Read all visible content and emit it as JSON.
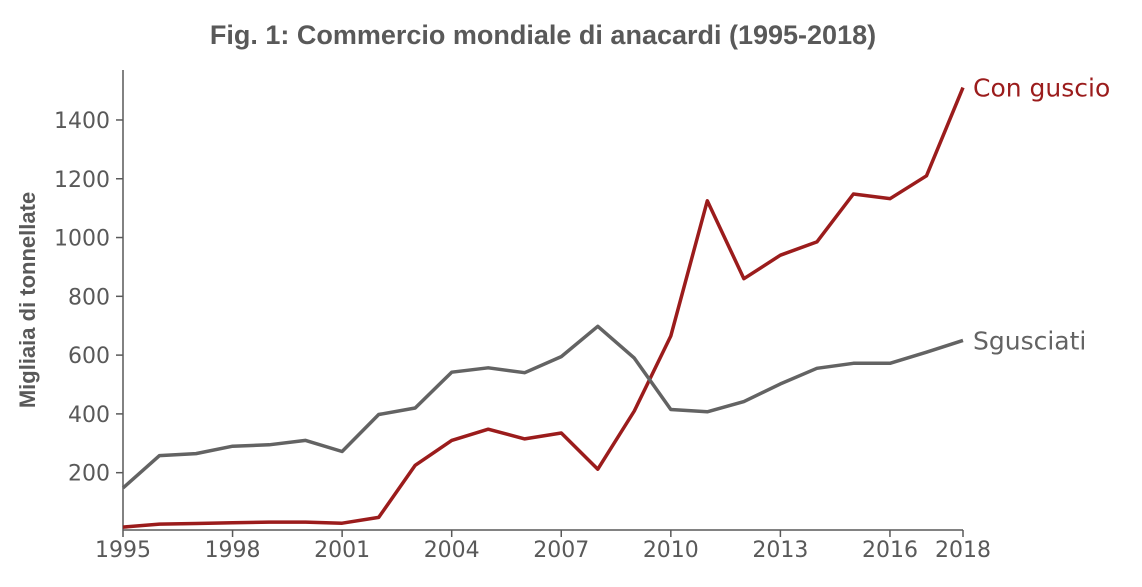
{
  "chart_data": {
    "type": "line",
    "title": "Fig. 1: Commercio mondiale di anacardi (1995-2018)",
    "xlabel": "",
    "ylabel": "Migliaia di tonnellate",
    "x": [
      1995,
      1996,
      1997,
      1998,
      1999,
      2000,
      2001,
      2002,
      2003,
      2004,
      2005,
      2006,
      2007,
      2008,
      2009,
      2010,
      2011,
      2012,
      2013,
      2014,
      2015,
      2016,
      2017,
      2018
    ],
    "xticks": [
      1995,
      1998,
      2001,
      2004,
      2007,
      2010,
      2013,
      2016,
      2018
    ],
    "yticks": [
      200,
      400,
      600,
      800,
      1000,
      1200,
      1400
    ],
    "xlim": [
      1995,
      2018
    ],
    "ylim": [
      5,
      1570
    ],
    "grid": false,
    "legend": "inline labels at line ends",
    "series": [
      {
        "name": "Con guscio",
        "color": "#9b1c1c",
        "values": [
          15,
          25,
          27,
          30,
          32,
          32,
          28,
          48,
          225,
          310,
          348,
          315,
          335,
          212,
          410,
          665,
          1125,
          860,
          940,
          985,
          1148,
          1132,
          1210,
          1510
        ]
      },
      {
        "name": "Sgusciati",
        "color": "#636363",
        "values": [
          148,
          258,
          265,
          290,
          295,
          310,
          272,
          398,
          420,
          542,
          557,
          540,
          595,
          698,
          590,
          415,
          407,
          442,
          502,
          555,
          572,
          572,
          610,
          650
        ]
      }
    ]
  }
}
